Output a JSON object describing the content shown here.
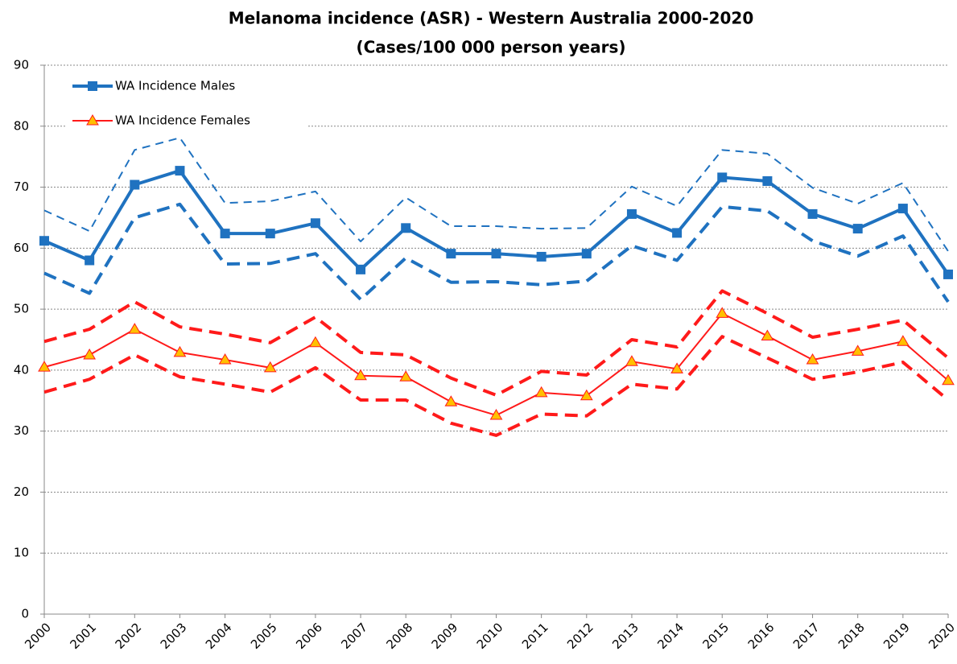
{
  "chart_data": {
    "type": "line",
    "title": "Melanoma incidence (ASR) - Western Australia 2000-2020",
    "subtitle": "(Cases/100 000 person years)",
    "categories": [
      "2000",
      "2001",
      "2002",
      "2003",
      "2004",
      "2005",
      "2006",
      "2007",
      "2008",
      "2009",
      "2010",
      "2011",
      "2012",
      "2013",
      "2014",
      "2015",
      "2016",
      "2017",
      "2018",
      "2019",
      "2020"
    ],
    "ylim": [
      0,
      90
    ],
    "yticks": [
      0,
      10,
      20,
      30,
      40,
      50,
      60,
      70,
      80,
      90
    ],
    "grid": true,
    "legend": "top-left",
    "series": [
      {
        "name": "WA Incidence Males",
        "color": "#1f72c0",
        "marker": "square",
        "line_style": "solid",
        "values": [
          61.2,
          58.0,
          70.4,
          72.7,
          62.4,
          62.4,
          64.1,
          56.5,
          63.3,
          59.1,
          59.1,
          58.6,
          59.1,
          65.6,
          62.5,
          71.6,
          71.0,
          65.6,
          63.2,
          66.5,
          55.7
        ]
      },
      {
        "name": "WA Incidence Females",
        "color": "#ff1a1a",
        "marker": "triangle",
        "marker_fill": "#ffc000",
        "line_style": "solid",
        "values": [
          40.5,
          42.5,
          46.7,
          42.9,
          41.7,
          40.4,
          44.5,
          39.1,
          38.9,
          34.8,
          32.6,
          36.3,
          35.8,
          41.4,
          40.2,
          49.3,
          45.6,
          41.7,
          43.1,
          44.7,
          38.3
        ]
      },
      {
        "color": "#1f72c0",
        "line_style": "dashed",
        "values": [
          66.2,
          62.8,
          76.1,
          78.1,
          67.4,
          67.7,
          69.3,
          61.1,
          68.3,
          63.6,
          63.6,
          63.2,
          63.3,
          70.1,
          66.9,
          76.1,
          75.5,
          69.9,
          67.3,
          70.7,
          59.5
        ]
      },
      {
        "color": "#1f72c0",
        "line_style": "dashed",
        "values": [
          55.9,
          52.6,
          65.0,
          67.2,
          57.4,
          57.5,
          59.1,
          51.6,
          58.4,
          54.4,
          54.5,
          54.0,
          54.6,
          60.4,
          58.0,
          66.8,
          66.1,
          61.2,
          58.7,
          62.0,
          51.2
        ]
      },
      {
        "color": "#ff1a1a",
        "line_style": "dashed",
        "values": [
          44.7,
          46.7,
          51.2,
          47.1,
          45.9,
          44.5,
          48.7,
          42.9,
          42.5,
          38.7,
          35.9,
          39.8,
          39.2,
          45.0,
          43.8,
          53.0,
          49.3,
          45.4,
          46.7,
          48.2,
          42.0
        ]
      },
      {
        "color": "#ff1a1a",
        "line_style": "dashed",
        "values": [
          36.4,
          38.5,
          42.5,
          38.9,
          37.7,
          36.4,
          40.4,
          35.1,
          35.1,
          31.3,
          29.3,
          32.8,
          32.5,
          37.7,
          36.9,
          45.5,
          42.0,
          38.5,
          39.7,
          41.3,
          35.1
        ]
      }
    ]
  }
}
